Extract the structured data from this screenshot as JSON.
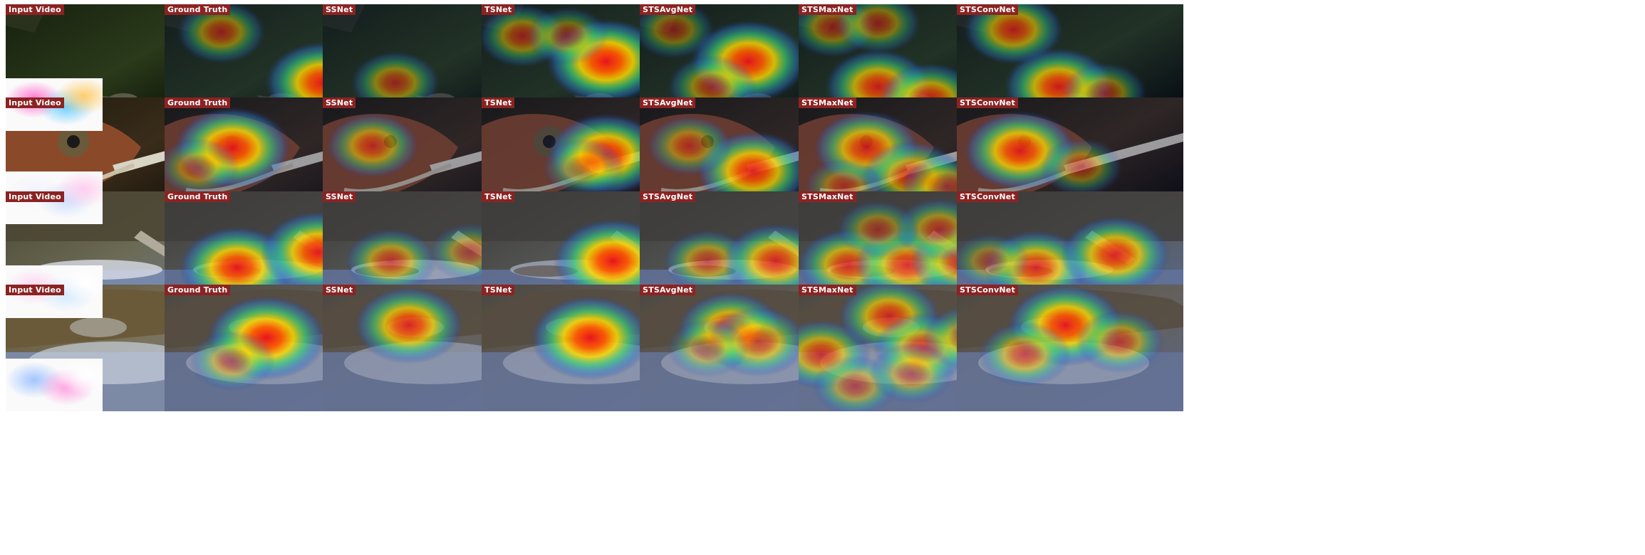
{
  "figure": {
    "columns": [
      "Input Video",
      "Ground Truth",
      "SSNet",
      "TSNet",
      "STSAvgNet",
      "STSMaxNet",
      "STSConvNet"
    ],
    "rows": [
      {
        "scene": "chameleon-branch",
        "bg": [
          "#17200f",
          "#2a3a1a",
          "#000000"
        ],
        "subject": "#5a5a48",
        "flow_colors": [
          "#ff66cc",
          "#66ccff",
          "#ffcc66"
        ],
        "maps": {
          "Ground Truth": [
            [
              0.7,
              0.62,
              0.95
            ],
            [
              0.25,
              0.22,
              0.55
            ]
          ],
          "SSNet": [
            [
              0.32,
              0.62,
              0.55
            ]
          ],
          "TSNet": [
            [
              0.55,
              0.45,
              1.0
            ],
            [
              0.18,
              0.25,
              0.55
            ],
            [
              0.38,
              0.25,
              0.45
            ]
          ],
          "STSAvgNet": [
            [
              0.48,
              0.45,
              0.95
            ],
            [
              0.32,
              0.65,
              0.55
            ],
            [
              0.15,
              0.2,
              0.45
            ]
          ],
          "STSMaxNet": [
            [
              0.35,
              0.65,
              0.8
            ],
            [
              0.58,
              0.75,
              0.75
            ],
            [
              0.15,
              0.18,
              0.5
            ],
            [
              0.35,
              0.15,
              0.5
            ]
          ],
          "STSConvNet": [
            [
              0.45,
              0.65,
              0.85
            ],
            [
              0.25,
              0.2,
              0.7
            ],
            [
              0.65,
              0.7,
              0.5
            ]
          ]
        }
      },
      {
        "scene": "chameleon-tongue",
        "bg": [
          "#1d1a0d",
          "#3a2c1a",
          "#050505"
        ],
        "subject": "#8a4a2a",
        "flow_colors": [
          "#f2f2ff",
          "#ccddff",
          "#ffccee"
        ],
        "maps": {
          "Ground Truth": [
            [
              0.3,
              0.4,
              0.95
            ],
            [
              0.15,
              0.55,
              0.45
            ]
          ],
          "SSNet": [
            [
              0.22,
              0.38,
              0.6
            ]
          ],
          "TSNet": [
            [
              0.55,
              0.45,
              0.95
            ],
            [
              0.45,
              0.55,
              0.45
            ]
          ],
          "STSAvgNet": [
            [
              0.5,
              0.58,
              0.9
            ],
            [
              0.22,
              0.38,
              0.5
            ]
          ],
          "STSMaxNet": [
            [
              0.3,
              0.4,
              0.8
            ],
            [
              0.5,
              0.62,
              0.7
            ],
            [
              0.65,
              0.7,
              0.55
            ],
            [
              0.2,
              0.7,
              0.4
            ]
          ],
          "STSConvNet": [
            [
              0.28,
              0.42,
              0.9
            ],
            [
              0.55,
              0.55,
              0.45
            ]
          ]
        }
      },
      {
        "scene": "croc-splash",
        "bg": [
          "#4a4532",
          "#6b6a55",
          "#6e7fa0"
        ],
        "subject": "#8a8070",
        "flow_colors": [
          "#ffd0f0",
          "#d0e8ff",
          "#ffffff"
        ],
        "maps": {
          "Ground Truth": [
            [
              0.32,
              0.6,
              0.95
            ],
            [
              0.68,
              0.48,
              0.95
            ]
          ],
          "SSNet": [
            [
              0.3,
              0.55,
              0.6
            ],
            [
              0.65,
              0.48,
              0.45
            ]
          ],
          "TSNet": [
            [
              0.58,
              0.55,
              1.0
            ]
          ],
          "STSAvgNet": [
            [
              0.3,
              0.55,
              0.55
            ],
            [
              0.6,
              0.55,
              0.8
            ]
          ],
          "STSMaxNet": [
            [
              0.22,
              0.58,
              0.75
            ],
            [
              0.48,
              0.58,
              0.8
            ],
            [
              0.72,
              0.55,
              0.75
            ],
            [
              0.62,
              0.3,
              0.55
            ],
            [
              0.35,
              0.3,
              0.45
            ]
          ],
          "STSConvNet": [
            [
              0.35,
              0.6,
              0.8
            ],
            [
              0.7,
              0.5,
              0.85
            ],
            [
              0.15,
              0.55,
              0.4
            ]
          ]
        }
      },
      {
        "scene": "croc-fish",
        "bg": [
          "#5c5238",
          "#7a715a",
          "#6f7a92"
        ],
        "subject": "#9a9584",
        "flow_colors": [
          "#9ec2ff",
          "#ff9ce0",
          "#ffffff"
        ],
        "maps": {
          "Ground Truth": [
            [
              0.45,
              0.42,
              1.0
            ],
            [
              0.3,
              0.6,
              0.5
            ]
          ],
          "SSNet": [
            [
              0.38,
              0.32,
              0.85
            ]
          ],
          "TSNet": [
            [
              0.48,
              0.42,
              1.0
            ]
          ],
          "STSAvgNet": [
            [
              0.4,
              0.35,
              0.8
            ],
            [
              0.52,
              0.45,
              0.7
            ],
            [
              0.3,
              0.5,
              0.45
            ]
          ],
          "STSMaxNet": [
            [
              0.1,
              0.55,
              0.7
            ],
            [
              0.4,
              0.25,
              0.75
            ],
            [
              0.55,
              0.5,
              0.7
            ],
            [
              0.75,
              0.42,
              0.6
            ],
            [
              0.25,
              0.8,
              0.5
            ],
            [
              0.5,
              0.7,
              0.5
            ],
            [
              0.85,
              0.3,
              0.45
            ]
          ],
          "STSConvNet": [
            [
              0.48,
              0.32,
              0.95
            ],
            [
              0.3,
              0.55,
              0.6
            ],
            [
              0.72,
              0.45,
              0.55
            ]
          ]
        }
      }
    ]
  }
}
